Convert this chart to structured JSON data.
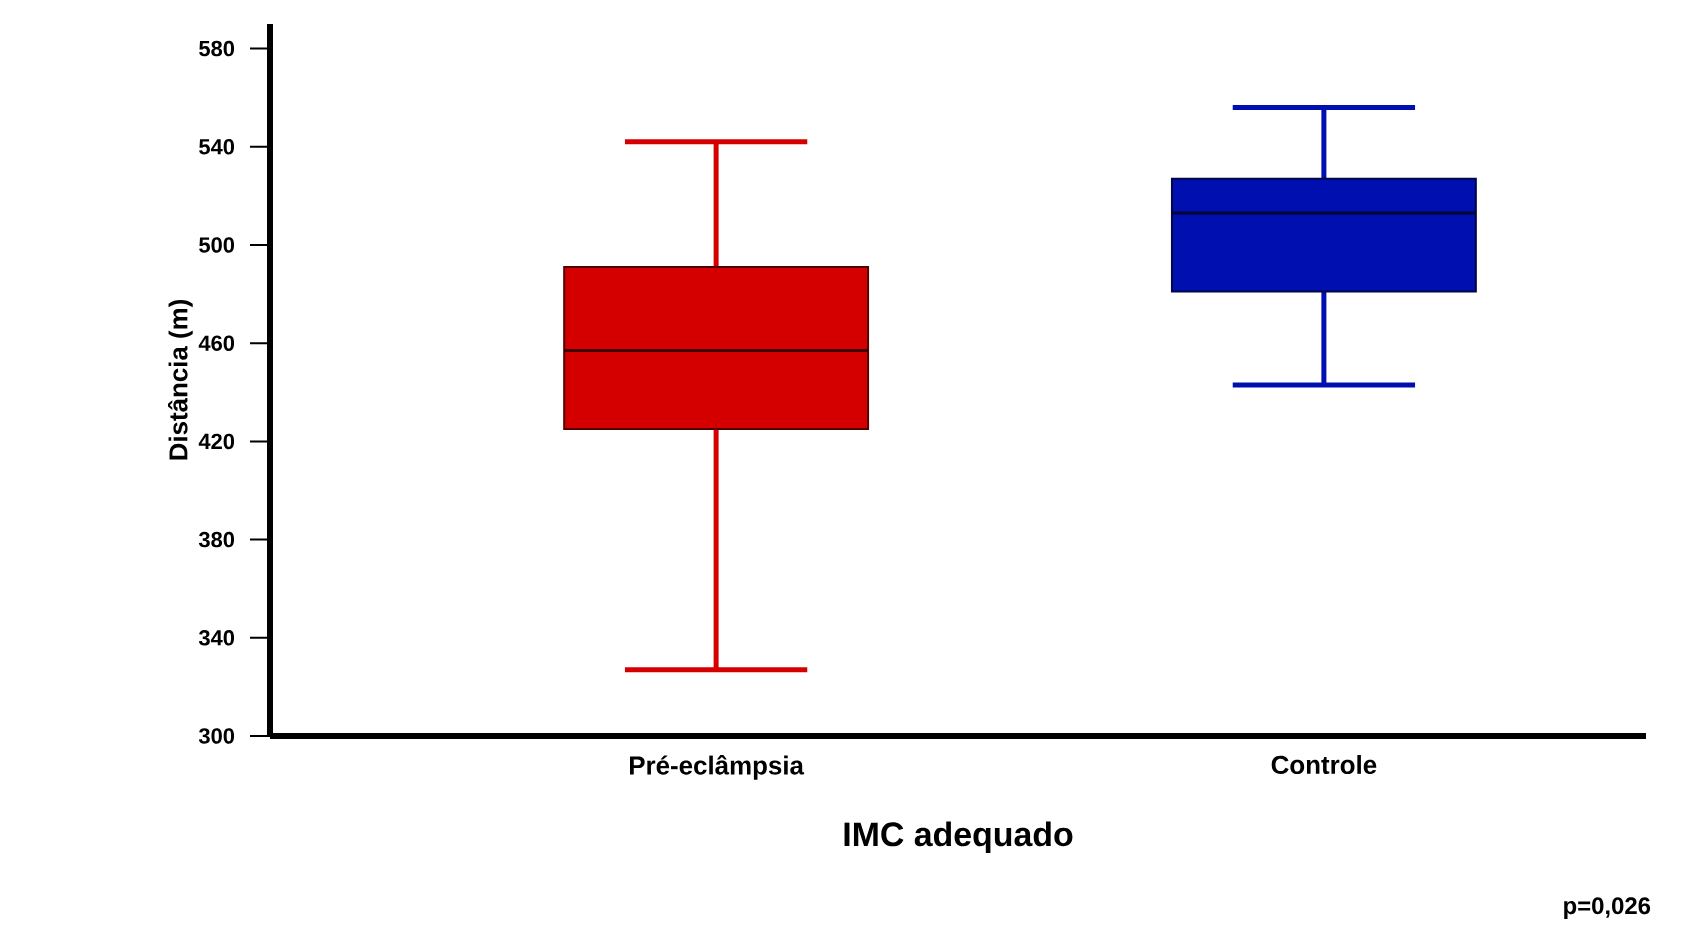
{
  "chart_data": {
    "type": "box",
    "xlabel": "IMC adequado",
    "ylabel": "Distância (m)",
    "categories": [
      "Pré-eclâmpsia",
      "Controle"
    ],
    "colors": [
      "#d40000",
      "#0010b0"
    ],
    "boxes": [
      {
        "low": 327,
        "q1": 425,
        "median": 457,
        "q3": 491,
        "high": 542
      },
      {
        "low": 443,
        "q1": 481,
        "median": 513,
        "q3": 527,
        "high": 556
      }
    ],
    "ylim": [
      300,
      590
    ],
    "yticks": [
      300,
      340,
      380,
      420,
      460,
      500,
      540,
      580
    ],
    "grid": false,
    "annotations": [
      "p=0,026"
    ]
  }
}
